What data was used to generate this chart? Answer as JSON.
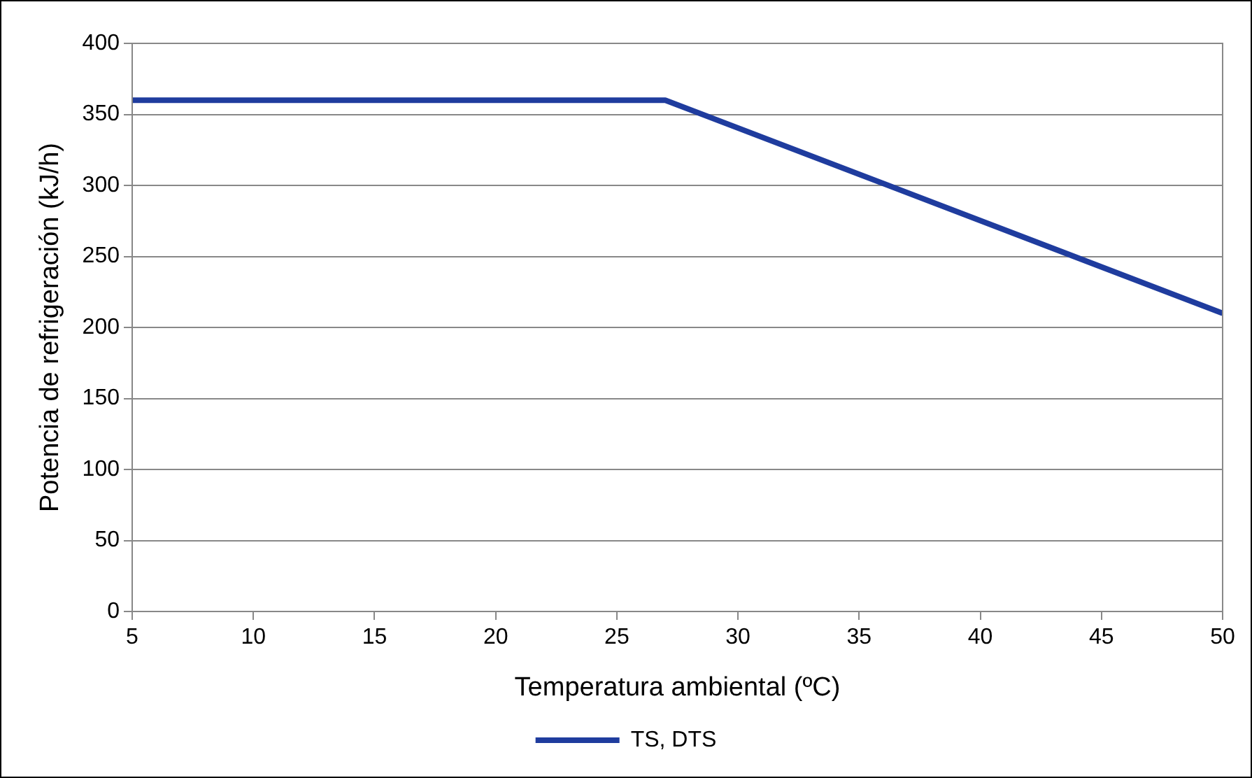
{
  "chart_data": {
    "type": "line",
    "xlabel": "Temperatura ambiental (ºC)",
    "ylabel": "Potencia de refrigeración (kJ/h)",
    "series": [
      {
        "name": "TS, DTS",
        "color": "#1f3c9e",
        "x": [
          5,
          27,
          50
        ],
        "values": [
          360,
          360,
          210
        ]
      }
    ],
    "xlim": [
      5,
      50
    ],
    "xticks": [
      5,
      10,
      15,
      20,
      25,
      30,
      35,
      40,
      45,
      50
    ],
    "ylim": [
      0,
      400
    ],
    "yticks": [
      0,
      50,
      100,
      150,
      200,
      250,
      300,
      350,
      400
    ],
    "grid": "y",
    "legend": "bottom",
    "marker": "none",
    "line_style": "solid"
  }
}
